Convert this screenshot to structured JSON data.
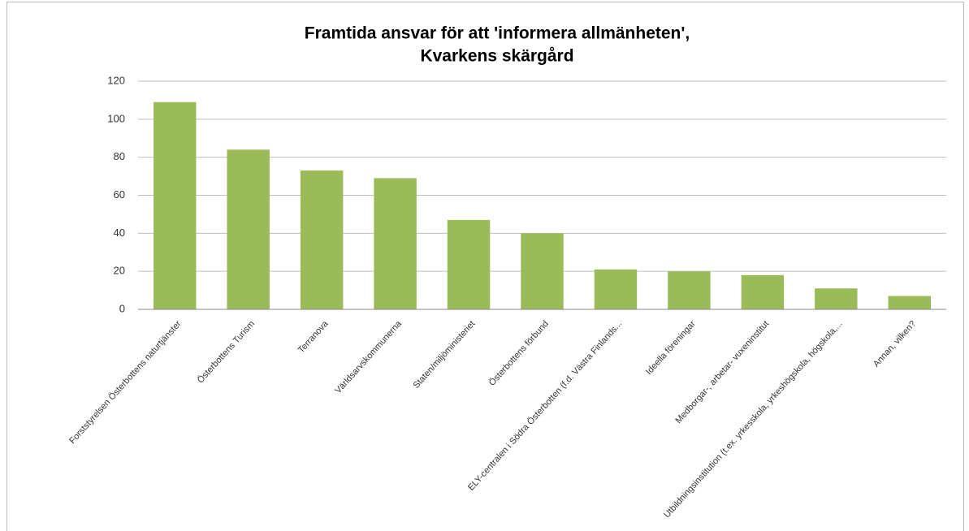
{
  "chart_data": {
    "type": "bar",
    "title": [
      "Framtida ansvar för att 'informera allmänheten',",
      "Kvarkens skärgård"
    ],
    "categories": [
      "Forststyrelsen Österbottens naturtjänster",
      "Österbottens Turism",
      "Terranova",
      "Världsarvskommunerna",
      "Staten/miljöministeriet",
      "Österbottens förbund",
      "ELY-centralen i Södra Österbotten (f.d. Västra Finlands...",
      "Ideella föreningar",
      "Medborgar-, arbetar- vuxeninstitut",
      "Utbildningsinstitution (t.ex. yrkesskola, yrkeshögskola, högskola,...",
      "Annan, vilken?"
    ],
    "values": [
      109,
      84,
      73,
      69,
      47,
      40,
      21,
      20,
      18,
      11,
      7
    ],
    "color": "#9bbb59",
    "ylim": [
      0,
      120
    ],
    "yticks": [
      0,
      20,
      40,
      60,
      80,
      100,
      120
    ],
    "grid": true
  }
}
